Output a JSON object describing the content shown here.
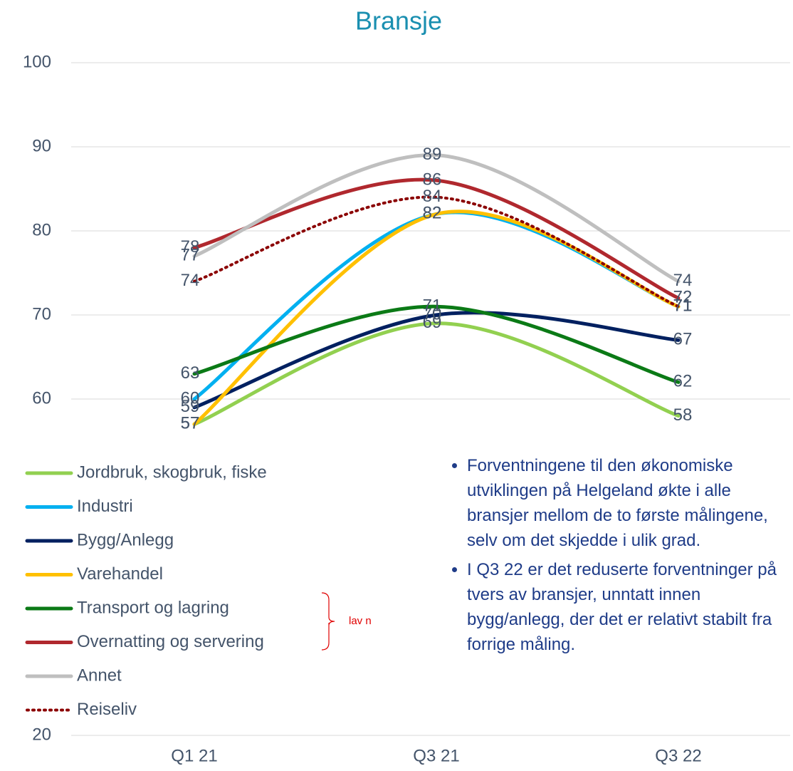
{
  "chart_data": {
    "type": "line",
    "title": "Bransje",
    "categories": [
      "Q1 21",
      "Q3 21",
      "Q3 22"
    ],
    "series": [
      {
        "name": "Jordbruk, skogbruk, fiske",
        "color": "#92d050",
        "values": [
          57,
          69,
          58
        ]
      },
      {
        "name": "Industri",
        "color": "#00b0f0",
        "values": [
          60,
          82,
          71
        ]
      },
      {
        "name": "Bygg/Anlegg",
        "color": "#002060",
        "values": [
          59,
          70,
          67
        ]
      },
      {
        "name": "Varehandel",
        "color": "#ffc000",
        "values": [
          57,
          82,
          71
        ]
      },
      {
        "name": "Transport og lagring",
        "color": "#0b7a16",
        "values": [
          63,
          71,
          62
        ]
      },
      {
        "name": "Overnatting og servering",
        "color": "#b0282e",
        "values": [
          78,
          86,
          72
        ]
      },
      {
        "name": "Annet",
        "color": "#bfbfbf",
        "values": [
          77,
          89,
          74
        ]
      },
      {
        "name": "Reiseliv",
        "color": "#8b0000",
        "dashed": true,
        "values": [
          74,
          84,
          71
        ]
      }
    ],
    "ylim": [
      20,
      100
    ],
    "yticks": [
      20,
      60,
      70,
      80,
      90,
      100
    ],
    "grid": true,
    "annotation": "lav n",
    "bullets": [
      "Forventningene til den økonomiske utviklingen på Helgeland økte i alle bransjer mellom de to første målingene, selv om det skjedde i ulik grad.",
      "I Q3 22 er det reduserte forventninger på tvers av bransjer, unntatt innen bygg/anlegg, der det er relativt stabilt fra forrige måling."
    ]
  }
}
